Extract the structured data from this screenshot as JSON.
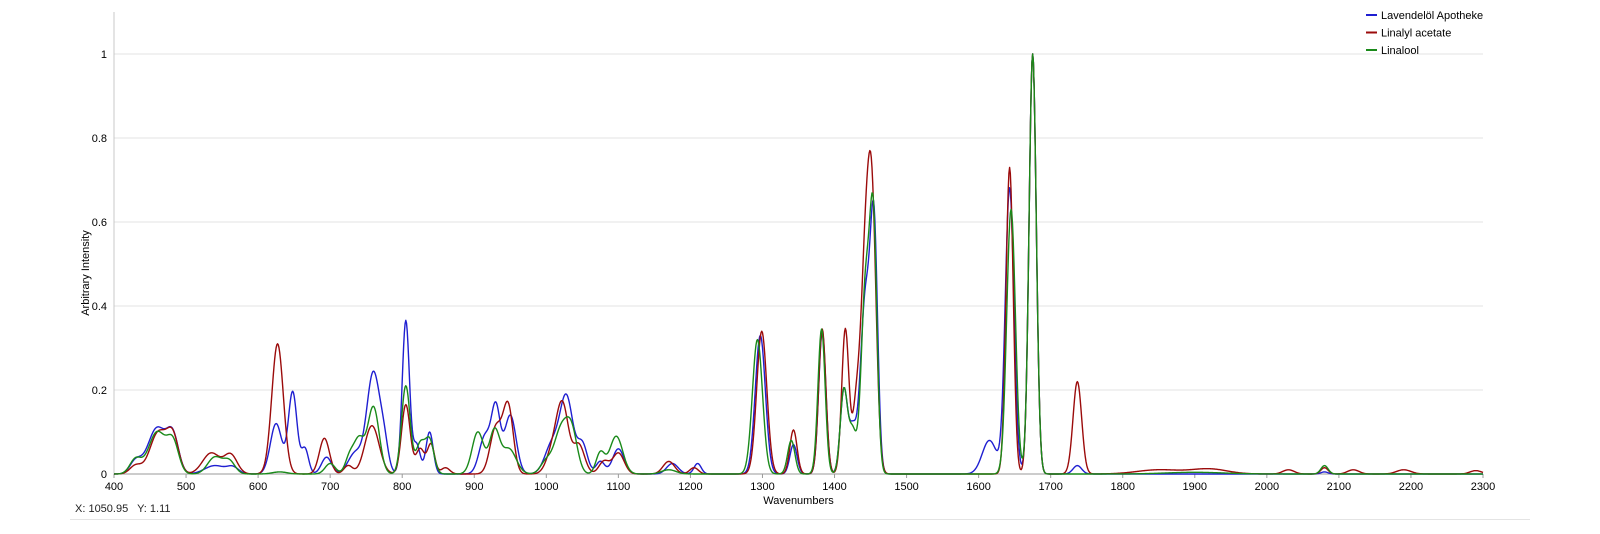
{
  "chart_data": {
    "type": "line",
    "xlabel": "Wavenumbers",
    "ylabel": "Arbitrary Intensity",
    "xlim": [
      400,
      2300
    ],
    "ylim": [
      0,
      1.1
    ],
    "x_ticks": [
      400,
      500,
      600,
      700,
      800,
      900,
      1000,
      1100,
      1200,
      1300,
      1400,
      1500,
      1600,
      1700,
      1800,
      1900,
      2000,
      2100,
      2200,
      2300
    ],
    "y_ticks": [
      0,
      0.2,
      0.4,
      0.6,
      0.8,
      1
    ],
    "y_tick_labels": [
      "0",
      "0.2",
      "0.4",
      "0.6",
      "0.8",
      "1"
    ],
    "grid": "horizontal",
    "legend_position": "top-right",
    "series": [
      {
        "name": "Lavendelöl Apotheke",
        "color": "#1f1fd1",
        "peaks": [
          [
            430,
            0.03,
            8
          ],
          [
            460,
            0.11,
            13
          ],
          [
            482,
            0.08,
            8
          ],
          [
            540,
            0.02,
            14
          ],
          [
            565,
            0.015,
            8
          ],
          [
            625,
            0.12,
            8
          ],
          [
            648,
            0.195,
            6
          ],
          [
            665,
            0.06,
            5
          ],
          [
            695,
            0.04,
            7
          ],
          [
            735,
            0.05,
            10
          ],
          [
            760,
            0.24,
            9
          ],
          [
            775,
            0.06,
            6
          ],
          [
            805,
            0.365,
            5
          ],
          [
            820,
            0.07,
            5
          ],
          [
            838,
            0.1,
            5
          ],
          [
            915,
            0.09,
            8
          ],
          [
            930,
            0.15,
            6
          ],
          [
            950,
            0.14,
            8
          ],
          [
            1008,
            0.07,
            10
          ],
          [
            1028,
            0.18,
            9
          ],
          [
            1050,
            0.07,
            7
          ],
          [
            1075,
            0.03,
            6
          ],
          [
            1100,
            0.06,
            8
          ],
          [
            1175,
            0.025,
            8
          ],
          [
            1210,
            0.025,
            5
          ],
          [
            1297,
            0.33,
            7
          ],
          [
            1343,
            0.07,
            5
          ],
          [
            1383,
            0.34,
            5
          ],
          [
            1413,
            0.2,
            5
          ],
          [
            1425,
            0.1,
            5
          ],
          [
            1443,
            0.42,
            7
          ],
          [
            1455,
            0.54,
            5
          ],
          [
            1615,
            0.08,
            10
          ],
          [
            1643,
            0.68,
            6
          ],
          [
            1675,
            1.0,
            5
          ],
          [
            1737,
            0.02,
            6
          ],
          [
            2080,
            0.005,
            5
          ]
        ]
      },
      {
        "name": "Linalyl acetate",
        "color": "#9b0b0b",
        "peaks": [
          [
            430,
            0.02,
            8
          ],
          [
            462,
            0.1,
            12
          ],
          [
            482,
            0.08,
            8
          ],
          [
            535,
            0.05,
            12
          ],
          [
            562,
            0.045,
            9
          ],
          [
            627,
            0.31,
            8
          ],
          [
            692,
            0.085,
            7
          ],
          [
            725,
            0.02,
            6
          ],
          [
            758,
            0.115,
            10
          ],
          [
            805,
            0.165,
            6
          ],
          [
            825,
            0.06,
            6
          ],
          [
            840,
            0.07,
            5
          ],
          [
            860,
            0.015,
            6
          ],
          [
            930,
            0.11,
            8
          ],
          [
            947,
            0.16,
            7
          ],
          [
            1010,
            0.06,
            9
          ],
          [
            1023,
            0.15,
            8
          ],
          [
            1045,
            0.07,
            8
          ],
          [
            1080,
            0.03,
            7
          ],
          [
            1100,
            0.05,
            8
          ],
          [
            1170,
            0.03,
            8
          ],
          [
            1205,
            0.015,
            6
          ],
          [
            1299,
            0.34,
            7
          ],
          [
            1343,
            0.105,
            5
          ],
          [
            1383,
            0.345,
            5
          ],
          [
            1415,
            0.345,
            5
          ],
          [
            1430,
            0.15,
            5
          ],
          [
            1442,
            0.44,
            6
          ],
          [
            1452,
            0.62,
            6
          ],
          [
            1643,
            0.73,
            5
          ],
          [
            1675,
            1.0,
            5
          ],
          [
            1737,
            0.22,
            6
          ],
          [
            1850,
            0.01,
            30
          ],
          [
            1920,
            0.012,
            25
          ],
          [
            2030,
            0.01,
            8
          ],
          [
            2080,
            0.015,
            5
          ],
          [
            2120,
            0.01,
            8
          ],
          [
            2190,
            0.01,
            10
          ],
          [
            2290,
            0.008,
            8
          ]
        ]
      },
      {
        "name": "Linalool",
        "color": "#1a8a1a",
        "peaks": [
          [
            430,
            0.035,
            8
          ],
          [
            460,
            0.1,
            12
          ],
          [
            482,
            0.07,
            8
          ],
          [
            540,
            0.04,
            10
          ],
          [
            560,
            0.03,
            8
          ],
          [
            630,
            0.005,
            10
          ],
          [
            700,
            0.025,
            7
          ],
          [
            727,
            0.04,
            6
          ],
          [
            740,
            0.08,
            7
          ],
          [
            760,
            0.16,
            8
          ],
          [
            805,
            0.21,
            6
          ],
          [
            825,
            0.07,
            6
          ],
          [
            838,
            0.08,
            6
          ],
          [
            905,
            0.1,
            8
          ],
          [
            928,
            0.1,
            7
          ],
          [
            948,
            0.06,
            10
          ],
          [
            1000,
            0.03,
            8
          ],
          [
            1020,
            0.1,
            9
          ],
          [
            1035,
            0.1,
            8
          ],
          [
            1075,
            0.05,
            6
          ],
          [
            1097,
            0.09,
            9
          ],
          [
            1170,
            0.01,
            10
          ],
          [
            1293,
            0.32,
            7
          ],
          [
            1340,
            0.08,
            5
          ],
          [
            1382,
            0.345,
            5
          ],
          [
            1413,
            0.2,
            5
          ],
          [
            1425,
            0.1,
            5
          ],
          [
            1443,
            0.44,
            6
          ],
          [
            1454,
            0.57,
            5
          ],
          [
            1645,
            0.63,
            6
          ],
          [
            1675,
            1.0,
            5
          ],
          [
            1900,
            0.004,
            40
          ],
          [
            2080,
            0.02,
            5
          ]
        ]
      }
    ]
  },
  "cursor_readout": {
    "x_label": "X: 1050.95",
    "y_label": "Y: 1.11"
  }
}
